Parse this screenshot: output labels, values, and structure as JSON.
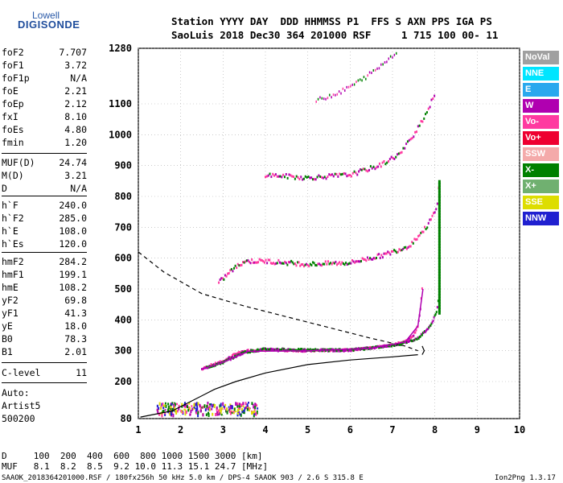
{
  "logo": {
    "top": "Lowell",
    "bottom": "DIGISONDE"
  },
  "header": {
    "line1": "Station YYYY DAY  DDD HHMMSS P1  FFS S AXN PPS IGA PS",
    "line2": "SaoLuis 2018 Dec30 364 201000 RSF     1 715 100 00- 11"
  },
  "params_group1": [
    {
      "k": "foF2",
      "v": "7.707"
    },
    {
      "k": "foF1",
      "v": "3.72"
    },
    {
      "k": "foF1p",
      "v": "N/A"
    },
    {
      "k": "foE",
      "v": "2.21"
    },
    {
      "k": "foEp",
      "v": "2.12"
    },
    {
      "k": "fxI",
      "v": "8.10"
    },
    {
      "k": "foEs",
      "v": "4.80"
    },
    {
      "k": "fmin",
      "v": "1.20"
    }
  ],
  "params_group2": [
    {
      "k": "MUF(D)",
      "v": "24.74"
    },
    {
      "k": "M(D)",
      "v": "3.21"
    },
    {
      "k": "D",
      "v": "N/A"
    }
  ],
  "params_group3": [
    {
      "k": "h`F",
      "v": "240.0"
    },
    {
      "k": "h`F2",
      "v": "285.0"
    },
    {
      "k": "h`E",
      "v": "108.0"
    },
    {
      "k": "h`Es",
      "v": "120.0"
    }
  ],
  "params_group4": [
    {
      "k": "hmF2",
      "v": "284.2"
    },
    {
      "k": "hmF1",
      "v": "199.1"
    },
    {
      "k": "hmE",
      "v": "108.2"
    },
    {
      "k": "yF2",
      "v": "69.8"
    },
    {
      "k": "yF1",
      "v": "41.3"
    },
    {
      "k": "yE",
      "v": "18.0"
    },
    {
      "k": "B0",
      "v": "78.3"
    },
    {
      "k": "B1",
      "v": "2.01"
    }
  ],
  "clevel": {
    "k": "C-level",
    "v": "11"
  },
  "auto": {
    "l1": "Auto:",
    "l2": "Artist5",
    "l3": "500200"
  },
  "legend": [
    {
      "label": "NoVal",
      "color": "#a0a0a0"
    },
    {
      "label": "NNE",
      "color": "#00e5ff"
    },
    {
      "label": "E",
      "color": "#29a8ee"
    },
    {
      "label": "W",
      "color": "#b000b0"
    },
    {
      "label": "Vo-",
      "color": "#ff3aa0"
    },
    {
      "label": "Vo+",
      "color": "#ee0030"
    },
    {
      "label": "SSW",
      "color": "#f4aaaa"
    },
    {
      "label": "X-",
      "color": "#008000"
    },
    {
      "label": "X+",
      "color": "#70b070"
    },
    {
      "label": "SSE",
      "color": "#dddd00"
    },
    {
      "label": "NNW",
      "color": "#2020d0"
    }
  ],
  "chart_data": {
    "type": "scatter",
    "x_ticks": [
      "1",
      "2",
      "3",
      "4",
      "5",
      "6",
      "7",
      "8",
      "9",
      "10"
    ],
    "y_ticks": [
      "80",
      "200",
      "300",
      "400",
      "500",
      "600",
      "700",
      "800",
      "900",
      "1000",
      "1100",
      "1280"
    ],
    "xlim": [
      1,
      10
    ],
    "ylim": [
      80,
      1280
    ],
    "grid": true,
    "colors": {
      "grid": "#aaaaaa",
      "pink": "#ff3aa0",
      "green": "#008000",
      "magenta": "#b000b0",
      "blue": "#2020d0",
      "yellow": "#dddd00"
    },
    "traces": {
      "o_trace": [
        [
          2.5,
          240
        ],
        [
          2.7,
          252
        ],
        [
          3.0,
          265
        ],
        [
          3.3,
          290
        ],
        [
          3.6,
          300
        ],
        [
          4.0,
          302
        ],
        [
          5.0,
          300
        ],
        [
          6.0,
          302
        ],
        [
          6.5,
          310
        ],
        [
          7.0,
          318
        ],
        [
          7.3,
          330
        ],
        [
          7.5,
          350
        ],
        [
          7.6,
          380
        ],
        [
          7.65,
          420
        ],
        [
          7.7,
          500
        ]
      ],
      "x_trace": [
        [
          2.6,
          245
        ],
        [
          3.0,
          262
        ],
        [
          3.5,
          295
        ],
        [
          4.0,
          305
        ],
        [
          5.0,
          302
        ],
        [
          6.0,
          302
        ],
        [
          6.7,
          312
        ],
        [
          7.2,
          322
        ],
        [
          7.6,
          340
        ],
        [
          7.9,
          380
        ],
        [
          8.05,
          430
        ],
        [
          8.1,
          480
        ]
      ],
      "second_hop": [
        [
          2.9,
          520
        ],
        [
          3.2,
          560
        ],
        [
          3.5,
          590
        ],
        [
          4.0,
          590
        ],
        [
          5.0,
          580
        ],
        [
          6.0,
          585
        ],
        [
          6.8,
          610
        ],
        [
          7.4,
          640
        ],
        [
          7.8,
          700
        ],
        [
          8.05,
          760
        ],
        [
          8.1,
          840
        ]
      ],
      "third_hop": [
        [
          4.0,
          870
        ],
        [
          5.0,
          860
        ],
        [
          6.0,
          870
        ],
        [
          6.7,
          900
        ],
        [
          7.2,
          940
        ],
        [
          7.5,
          1000
        ],
        [
          7.8,
          1070
        ],
        [
          8.0,
          1130
        ]
      ],
      "fourth_hop": [
        [
          5.2,
          1110
        ],
        [
          5.8,
          1140
        ],
        [
          6.3,
          1180
        ],
        [
          6.7,
          1220
        ],
        [
          7.1,
          1270
        ]
      ],
      "profile": [
        [
          1.05,
          85
        ],
        [
          1.8,
          105
        ],
        [
          2.3,
          140
        ],
        [
          2.8,
          175
        ],
        [
          3.3,
          200
        ],
        [
          4.0,
          228
        ],
        [
          5.0,
          255
        ],
        [
          6.0,
          270
        ],
        [
          7.0,
          280
        ],
        [
          7.6,
          287
        ]
      ],
      "dashed": [
        [
          1.0,
          620
        ],
        [
          1.6,
          555
        ],
        [
          2.5,
          485
        ],
        [
          3.5,
          445
        ],
        [
          4.5,
          410
        ],
        [
          5.5,
          375
        ],
        [
          6.5,
          340
        ],
        [
          7.3,
          315
        ],
        [
          7.6,
          300
        ]
      ]
    }
  },
  "footer": {
    "row1": "D     100  200  400  600  800 1000 1500 3000 [km]",
    "row2": "MUF   8.1  8.2  8.5  9.2 10.0 11.3 15.1 24.7 [MHz]",
    "row3": "SAAOK_2018364201000.RSF / 180fx256h 50 kHz 5.0 km / DPS-4 SAAOK 903 / 2.6 S 315.8 E",
    "version": "Ion2Png 1.3.17"
  }
}
